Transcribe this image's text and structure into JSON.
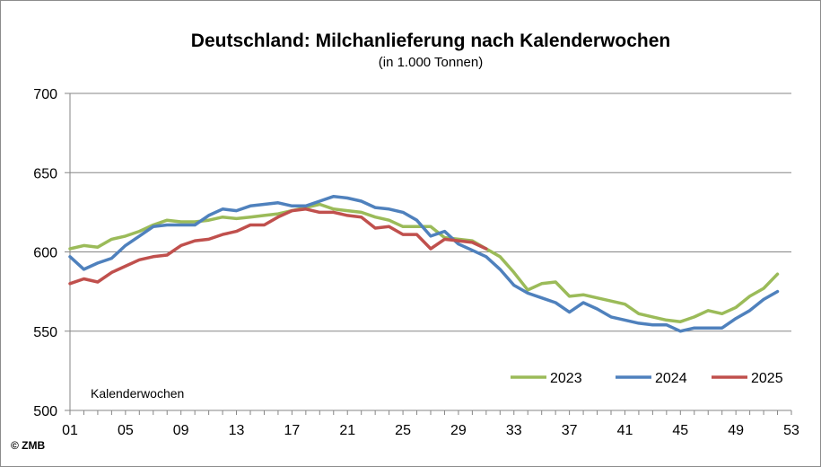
{
  "chart_data": {
    "type": "line",
    "title": "Deutschland: Milchanlieferung nach Kalenderwochen",
    "subtitle": "(in 1.000 Tonnen)",
    "xlabel": "Kalenderwochen",
    "ylabel": "",
    "xlim": [
      1,
      53
    ],
    "ylim": [
      500,
      700
    ],
    "y_ticks": [
      500,
      550,
      600,
      650,
      700
    ],
    "x_ticks": [
      1,
      5,
      9,
      13,
      17,
      21,
      25,
      29,
      33,
      37,
      41,
      45,
      49,
      53
    ],
    "x_tick_labels": [
      "01",
      "05",
      "09",
      "13",
      "17",
      "21",
      "25",
      "29",
      "33",
      "37",
      "41",
      "45",
      "49",
      "53"
    ],
    "grid": "horizontal",
    "legend_position": "bottom-right",
    "copyright": "© ZMB",
    "series": [
      {
        "name": "2023",
        "color": "#9bbb59",
        "x": [
          1,
          2,
          3,
          4,
          5,
          6,
          7,
          8,
          9,
          10,
          11,
          12,
          13,
          14,
          15,
          16,
          17,
          18,
          19,
          20,
          21,
          22,
          23,
          24,
          25,
          26,
          27,
          28,
          29,
          30,
          31,
          32,
          33,
          34,
          35,
          36,
          37,
          38,
          39,
          40,
          41,
          42,
          43,
          44,
          45,
          46,
          47,
          48,
          49,
          50,
          51,
          52
        ],
        "values": [
          602,
          604,
          603,
          608,
          610,
          613,
          617,
          620,
          619,
          619,
          620,
          622,
          621,
          622,
          623,
          624,
          626,
          628,
          630,
          627,
          626,
          625,
          622,
          620,
          616,
          616,
          616,
          609,
          608,
          607,
          602,
          597,
          587,
          576,
          580,
          581,
          572,
          573,
          571,
          569,
          567,
          561,
          559,
          557,
          556,
          559,
          563,
          561,
          565,
          572,
          577,
          586
        ]
      },
      {
        "name": "2024",
        "color": "#4f81bd",
        "x": [
          1,
          2,
          3,
          4,
          5,
          6,
          7,
          8,
          9,
          10,
          11,
          12,
          13,
          14,
          15,
          16,
          17,
          18,
          19,
          20,
          21,
          22,
          23,
          24,
          25,
          26,
          27,
          28,
          29,
          30,
          31,
          32,
          33,
          34,
          35,
          36,
          37,
          38,
          39,
          40,
          41,
          42,
          43,
          44,
          45,
          46,
          47,
          48,
          49,
          50,
          51,
          52
        ],
        "values": [
          597,
          589,
          593,
          596,
          604,
          610,
          616,
          617,
          617,
          617,
          623,
          627,
          626,
          629,
          630,
          631,
          629,
          629,
          632,
          635,
          634,
          632,
          628,
          627,
          625,
          620,
          610,
          613,
          605,
          601,
          597,
          589,
          579,
          574,
          571,
          568,
          562,
          568,
          564,
          559,
          557,
          555,
          554,
          554,
          550,
          552,
          552,
          552,
          558,
          563,
          570,
          575
        ]
      },
      {
        "name": "2025",
        "color": "#c0504d",
        "x": [
          1,
          2,
          3,
          4,
          5,
          6,
          7,
          8,
          9,
          10,
          11,
          12,
          13,
          14,
          15,
          16,
          17,
          18,
          19,
          20,
          21,
          22,
          23,
          24,
          25,
          26,
          27,
          28,
          29,
          30,
          31
        ],
        "values": [
          580,
          583,
          581,
          587,
          591,
          595,
          597,
          598,
          604,
          607,
          608,
          611,
          613,
          617,
          617,
          622,
          626,
          627,
          625,
          625,
          623,
          622,
          615,
          616,
          611,
          611,
          602,
          608,
          607,
          606,
          602
        ]
      }
    ]
  }
}
